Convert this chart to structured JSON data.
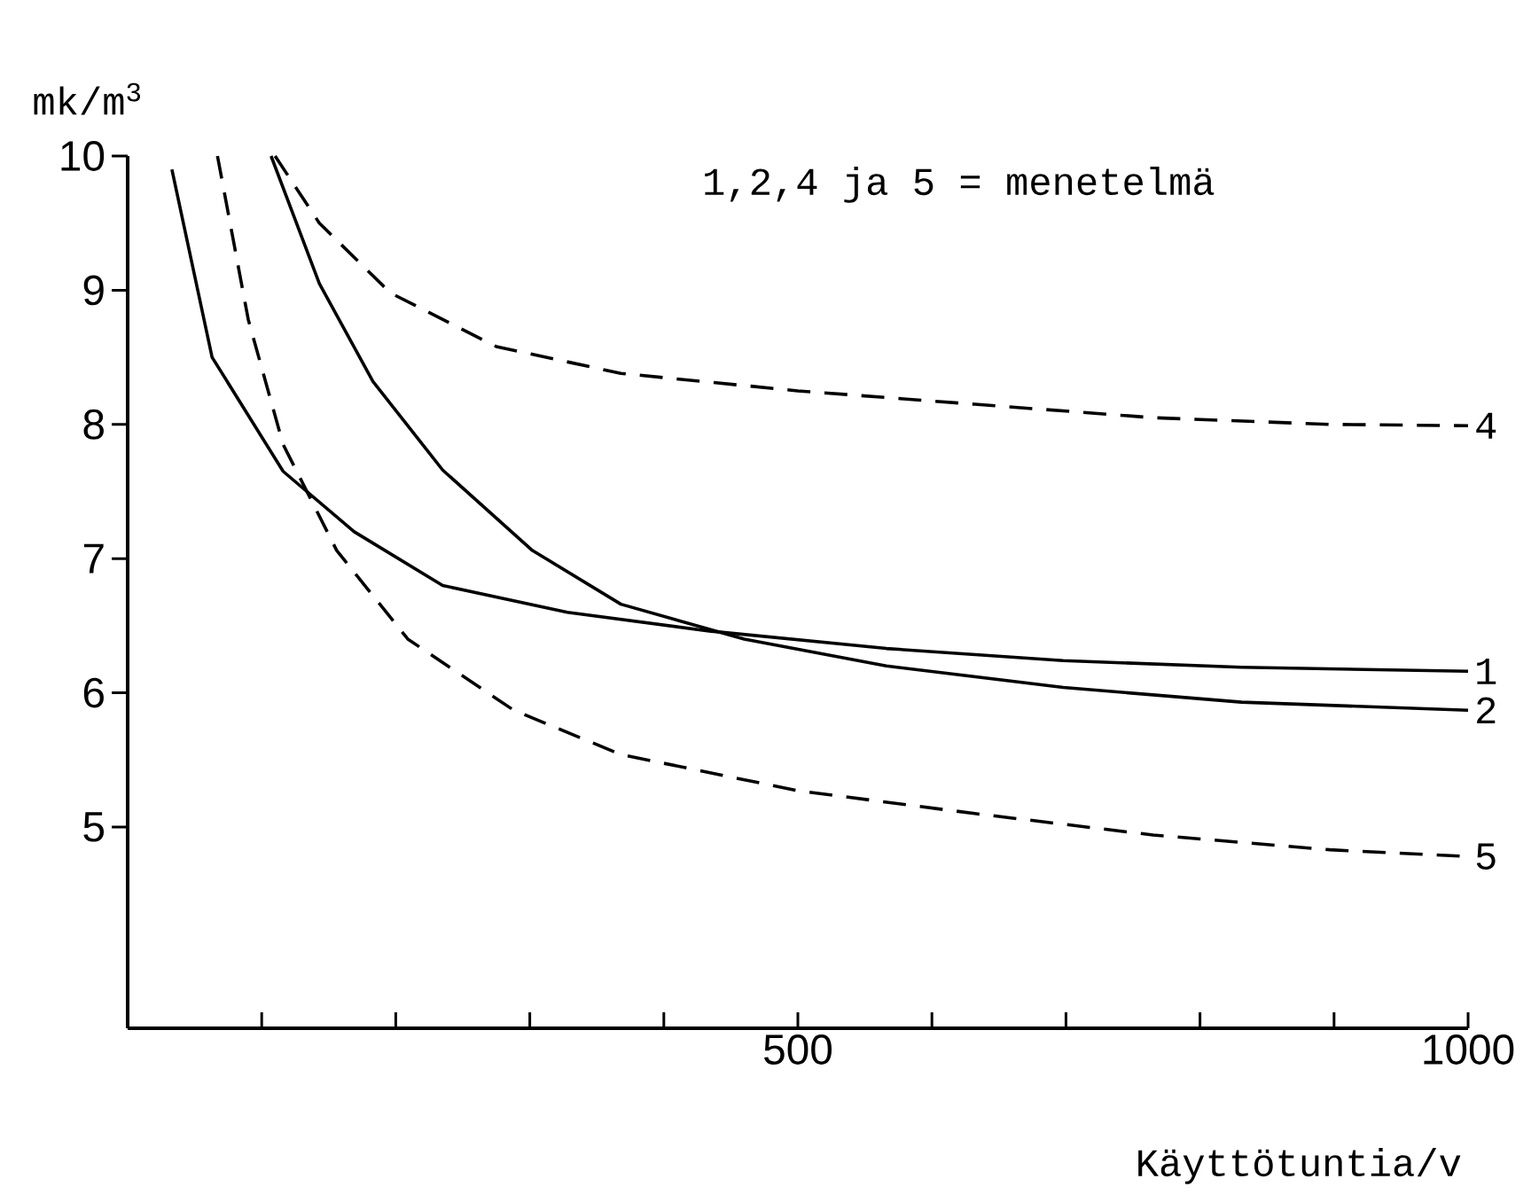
{
  "chart_data": {
    "type": "line",
    "ylabel": "mk/m$^{3}$",
    "xlabel": "Käyttötuntia/v",
    "annotations": [
      "1,2,4 ja 5 = menetelmä"
    ],
    "xlim": [
      0,
      1000
    ],
    "ylim": [
      3.5,
      10
    ],
    "xticks": [
      {
        "value": 100,
        "label": null
      },
      {
        "value": 200,
        "label": null
      },
      {
        "value": 300,
        "label": null
      },
      {
        "value": 400,
        "label": null
      },
      500,
      {
        "value": 600,
        "label": null
      },
      {
        "value": 700,
        "label": null
      },
      {
        "value": 800,
        "label": null
      },
      {
        "value": 900,
        "label": null
      },
      1000
    ],
    "yticks": [
      5,
      6,
      7,
      8,
      9,
      10
    ],
    "grid": false,
    "marker": "none",
    "series": [
      {
        "name": "1",
        "color": "#000000",
        "line_style": "solid",
        "x": [
          33,
          63,
          116,
          169,
          235,
          328,
          434,
          566,
          698,
          831,
          1000
        ],
        "values": [
          9.9,
          8.5,
          7.65,
          7.2,
          6.8,
          6.6,
          6.46,
          6.33,
          6.24,
          6.19,
          6.16
        ]
      },
      {
        "name": "2",
        "color": "#000000",
        "line_style": "solid",
        "x": [
          107,
          143,
          183,
          235,
          302,
          368,
          460,
          566,
          698,
          831,
          1000
        ],
        "values": [
          10,
          9.05,
          8.32,
          7.66,
          7.06,
          6.66,
          6.4,
          6.2,
          6.04,
          5.93,
          5.87
        ]
      },
      {
        "name": "4",
        "color": "#000000",
        "line_style": "dashed",
        "x": [
          110,
          143,
          196,
          275,
          368,
          500,
          632,
          765,
          897,
          1000
        ],
        "values": [
          10,
          9.5,
          8.98,
          8.58,
          8.38,
          8.25,
          8.15,
          8.05,
          8.0,
          7.99
        ]
      },
      {
        "name": "5",
        "color": "#000000",
        "line_style": "dashed",
        "x": [
          67,
          90,
          116,
          156,
          209,
          288,
          368,
          500,
          632,
          765,
          897,
          1000
        ],
        "values": [
          10,
          8.78,
          7.85,
          7.06,
          6.4,
          5.87,
          5.54,
          5.27,
          5.1,
          4.94,
          4.83,
          4.78
        ]
      }
    ]
  }
}
